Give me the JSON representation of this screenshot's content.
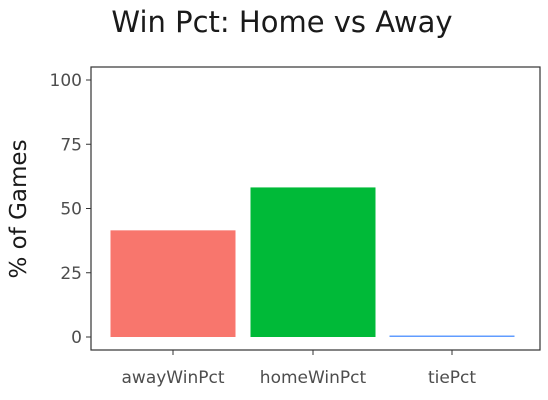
{
  "chart_data": {
    "type": "bar",
    "title": "Win Pct: Home vs Away",
    "xlabel": "",
    "ylabel": "% of Games",
    "categories": [
      "awayWinPct",
      "homeWinPct",
      "tiePct"
    ],
    "values": [
      41.5,
      58.2,
      0.3
    ],
    "colors": [
      "#F8766D",
      "#00BA38",
      "#619CFF"
    ],
    "ylim": [
      0,
      100
    ],
    "yticks": [
      0,
      25,
      50,
      75,
      100
    ],
    "grid": false,
    "legend": "none"
  }
}
